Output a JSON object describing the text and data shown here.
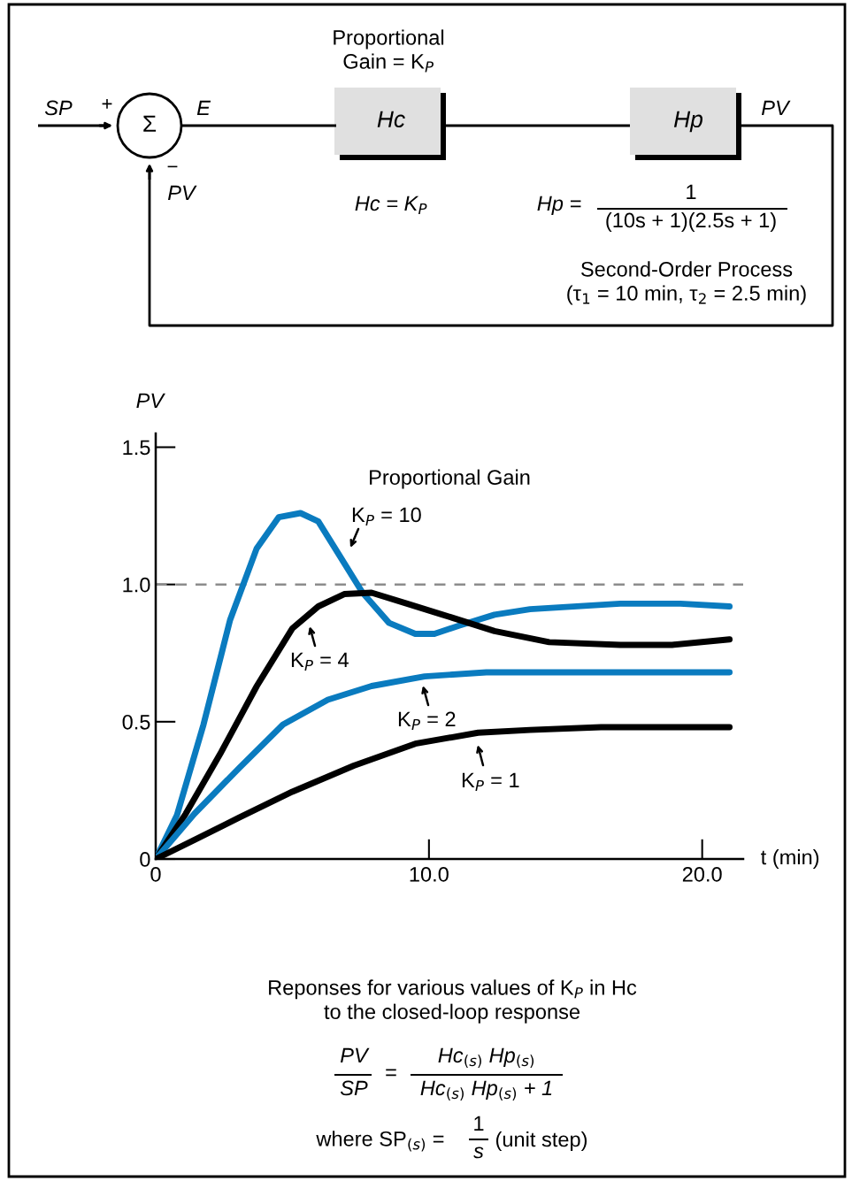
{
  "chart_data": {
    "type": "line",
    "title": "Proportional Gain",
    "xlabel": "t (min)",
    "ylabel": "PV",
    "xlim": [
      0,
      21.5
    ],
    "ylim": [
      0,
      1.55
    ],
    "xticks": [
      0,
      {
        "value": 10,
        "label": "10.0"
      },
      {
        "value": 20,
        "label": "20.0"
      }
    ],
    "yticks": [
      0,
      0.5,
      {
        "value": 1,
        "label": "1.0"
      },
      1.5
    ],
    "grid": false,
    "legend": false,
    "line_style": "solid",
    "marker": "none",
    "ref_lines": [
      {
        "axis": "y",
        "value": 1,
        "color": "#8c8c8c",
        "line_style": "dashed"
      }
    ],
    "series": [
      {
        "color": "#0a7bbf",
        "x": [
          0,
          0.78,
          1.75,
          2.72,
          3.69,
          4.5,
          5.3,
          5.95,
          6.76,
          7.57,
          8.54,
          9.5,
          10.2,
          11.1,
          12.4,
          13.7,
          17,
          19.2,
          21
        ],
        "values": [
          0,
          0.16,
          0.49,
          0.87,
          1.13,
          1.245,
          1.26,
          1.23,
          1.1,
          0.97,
          0.86,
          0.82,
          0.82,
          0.85,
          0.89,
          0.91,
          0.93,
          0.93,
          0.92
        ]
      },
      {
        "color": "#000000",
        "x": [
          0,
          1.1,
          2.4,
          3.7,
          5.0,
          5.95,
          6.9,
          7.9,
          9.2,
          10.5,
          12.4,
          14.4,
          17,
          18.9,
          21
        ],
        "values": [
          0,
          0.165,
          0.39,
          0.63,
          0.84,
          0.92,
          0.965,
          0.97,
          0.93,
          0.89,
          0.83,
          0.79,
          0.78,
          0.78,
          0.8
        ]
      },
      {
        "color": "#0a7bbf",
        "x": [
          0,
          1.42,
          3.04,
          4.66,
          6.3,
          7.9,
          9.84,
          12.1,
          15.3,
          21
        ],
        "values": [
          0,
          0.165,
          0.33,
          0.49,
          0.58,
          0.63,
          0.665,
          0.68,
          0.68,
          0.68
        ]
      },
      {
        "color": "#000000",
        "x": [
          0,
          1.42,
          3.04,
          5.0,
          7.25,
          9.5,
          11.8,
          13.7,
          16.3,
          18.9,
          21
        ],
        "values": [
          0,
          0.07,
          0.15,
          0.245,
          0.34,
          0.42,
          0.46,
          0.47,
          0.48,
          0.48,
          0.48
        ]
      }
    ],
    "annotations": [
      "K$_{P}$ = 10",
      "K$_{P}$ = 4",
      "K$_{P}$ = 2",
      "K$_{P}$ = 1",
      "Proportional\nGain = K$_{P}$",
      "SP",
      "+",
      "Σ",
      "E",
      "−",
      "PV",
      "Hc",
      "Hp",
      "PV",
      "Hc = K$_{P}$",
      "Hp =",
      "1",
      "(10s + 1)(2.5s + 1)",
      "Second-Order Process\n(τ$_{1}$ = 10 min, τ$_{2}$ = 2.5 min)",
      "Reponses for various values of K$_{P}$ in Hc\nto the closed-loop response",
      "PV",
      "SP",
      "=",
      "Hc$_{(s)}$ Hp$_{(s)}$",
      "Hc$_{(s)}$ Hp$_{(s)}$ + 1",
      "where SP$_{(s)}$ =",
      "1",
      "s",
      "(unit step)"
    ]
  }
}
